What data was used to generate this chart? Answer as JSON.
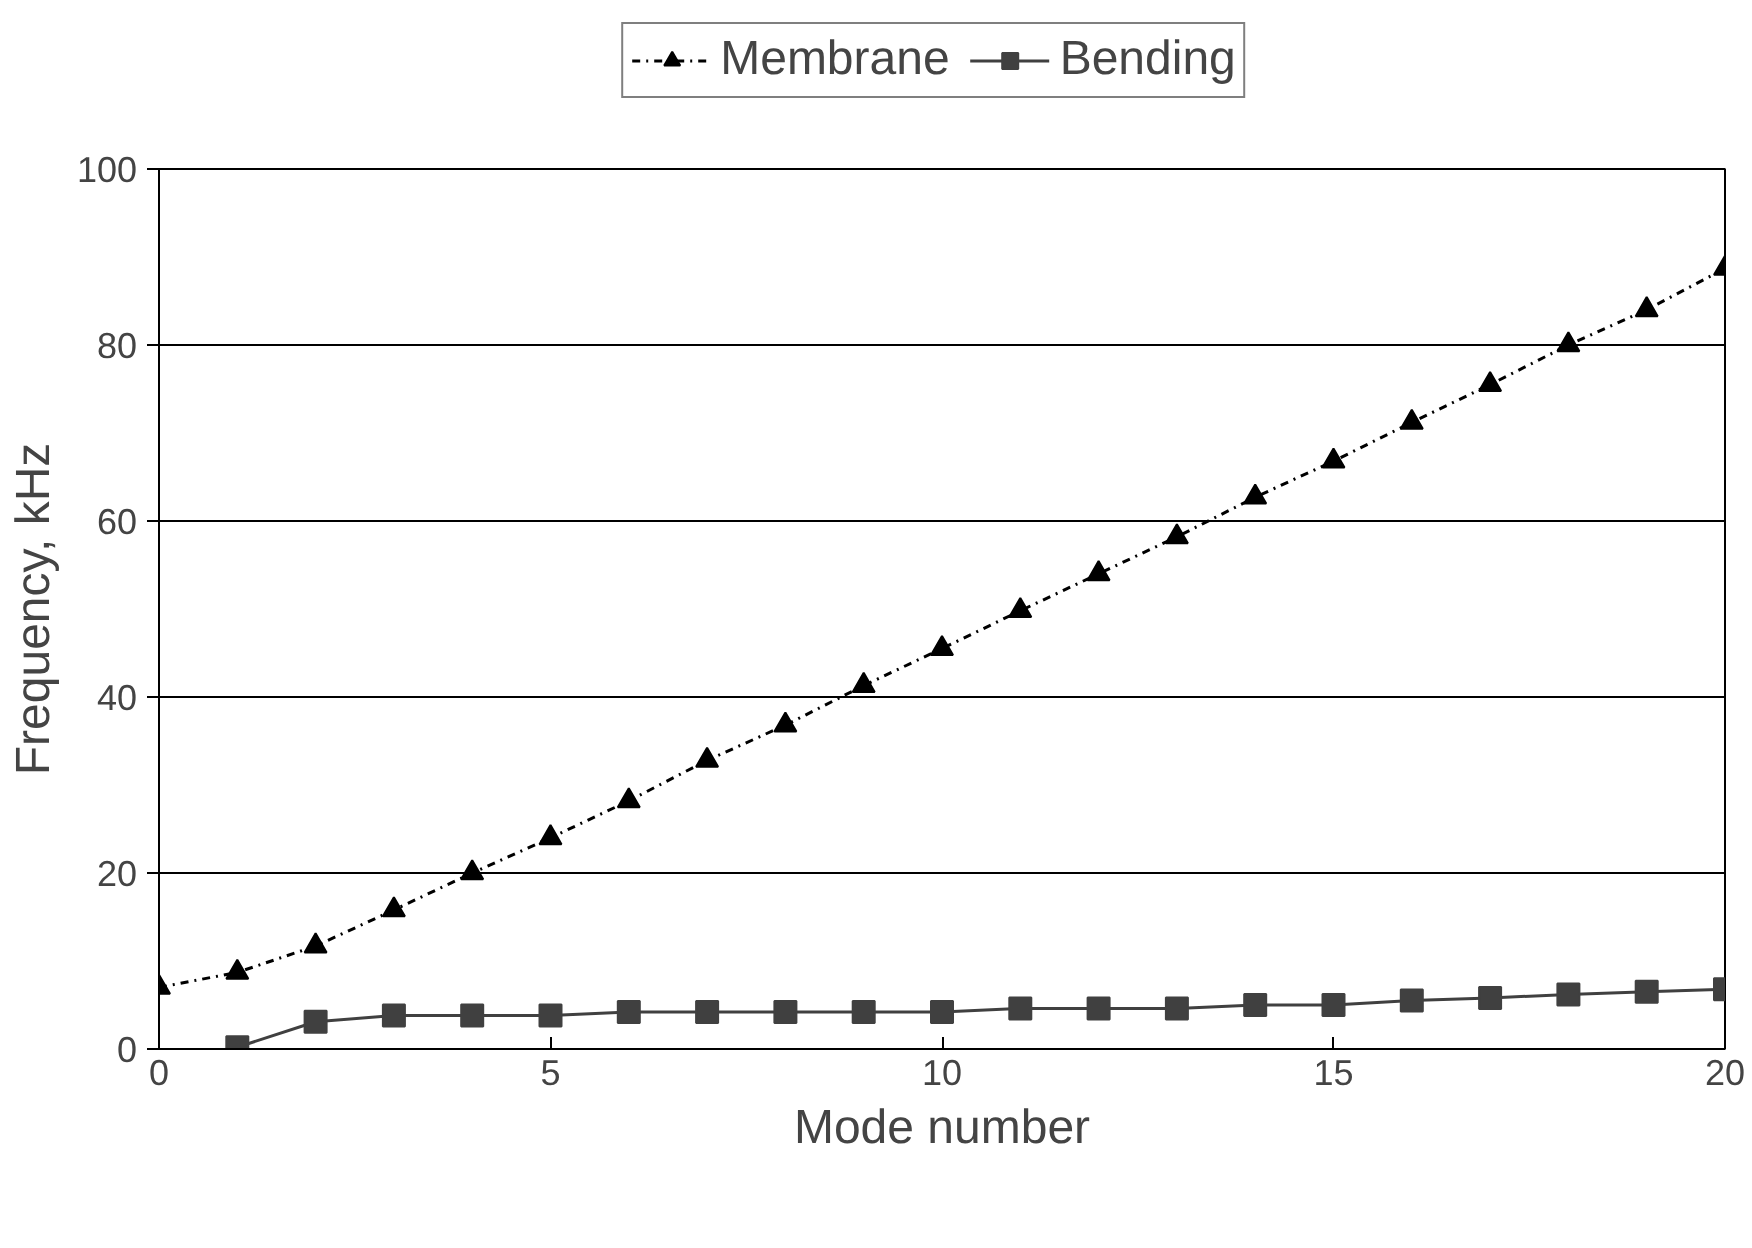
{
  "chart_data": {
    "type": "line",
    "xlabel": "Mode number",
    "ylabel": "Frequency, kHz",
    "xlim": [
      0,
      20
    ],
    "xticks": [
      0,
      5,
      10,
      15,
      20
    ],
    "ylim": [
      0,
      100
    ],
    "yticks": [
      0,
      20,
      40,
      60,
      80,
      100
    ],
    "grid": "y",
    "legend": "top",
    "series": [
      {
        "name": "Membrane",
        "color": "#000000",
        "marker": "triangle",
        "line_style": "dashed",
        "x": [
          0,
          1,
          2,
          3,
          4,
          5,
          6,
          7,
          8,
          9,
          10,
          11,
          12,
          13,
          14,
          15,
          16,
          17,
          18,
          19,
          20
        ],
        "values": [
          7,
          8.7,
          11.7,
          15.8,
          20,
          24,
          28.2,
          32.8,
          36.8,
          41.3,
          45.5,
          49.8,
          54,
          58.2,
          62.7,
          66.8,
          71.2,
          75.5,
          80,
          84,
          88.7
        ]
      },
      {
        "name": "Bending",
        "color": "#404040",
        "marker": "square",
        "line_style": "solid",
        "x": [
          1,
          2,
          3,
          4,
          5,
          6,
          7,
          8,
          9,
          10,
          11,
          12,
          13,
          14,
          15,
          16,
          17,
          18,
          19,
          20
        ],
        "values": [
          0.2,
          3.1,
          3.8,
          3.8,
          3.8,
          4.2,
          4.2,
          4.2,
          4.2,
          4.2,
          4.6,
          4.6,
          4.6,
          5,
          5,
          5.5,
          5.8,
          6.2,
          6.5,
          6.8
        ]
      }
    ]
  }
}
